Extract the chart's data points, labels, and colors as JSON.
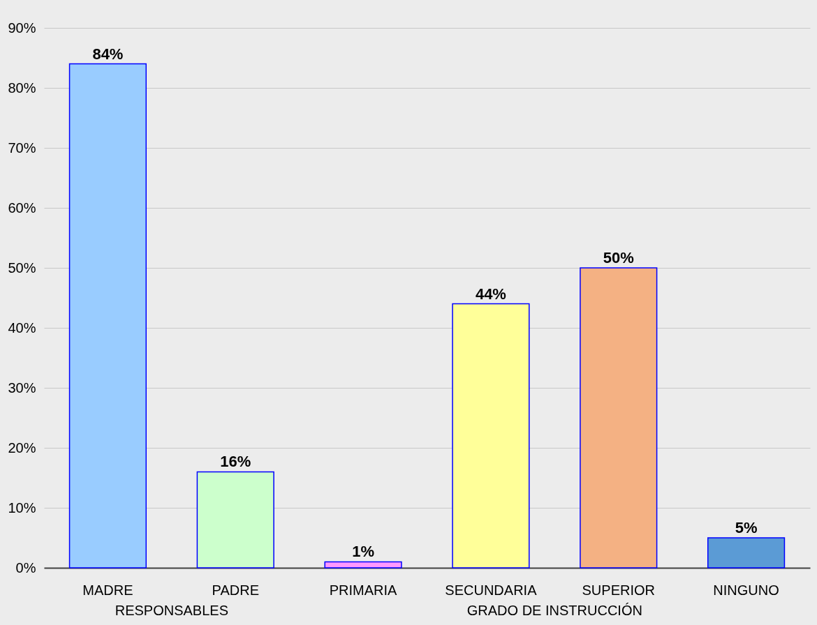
{
  "chart_data": {
    "type": "bar",
    "categories": [
      "MADRE",
      "PADRE",
      "PRIMARIA",
      "SECUNDARIA",
      "SUPERIOR",
      "NINGUNO"
    ],
    "values": [
      84,
      16,
      1,
      44,
      50,
      5
    ],
    "value_labels": [
      "84%",
      "16%",
      "1%",
      "44%",
      "50%",
      "5%"
    ],
    "colors": [
      "#99ccff",
      "#ccffcc",
      "#ff99ff",
      "#ffff99",
      "#f4b183",
      "#5b9bd5"
    ],
    "ylim": [
      0,
      90
    ],
    "yticks": [
      {
        "value": 0,
        "label": "0%"
      },
      {
        "value": 10,
        "label": "10%"
      },
      {
        "value": 20,
        "label": "20%"
      },
      {
        "value": 30,
        "label": "30%"
      },
      {
        "value": 40,
        "label": "40%"
      },
      {
        "value": 50,
        "label": "50%"
      },
      {
        "value": 60,
        "label": "60%"
      },
      {
        "value": 70,
        "label": "70%"
      },
      {
        "value": 80,
        "label": "80%"
      },
      {
        "value": 90,
        "label": "90%"
      }
    ],
    "annotations": [
      "RESPONSABLES",
      "GRADO DE INSTRUCCIÓN"
    ],
    "grid": "y"
  }
}
